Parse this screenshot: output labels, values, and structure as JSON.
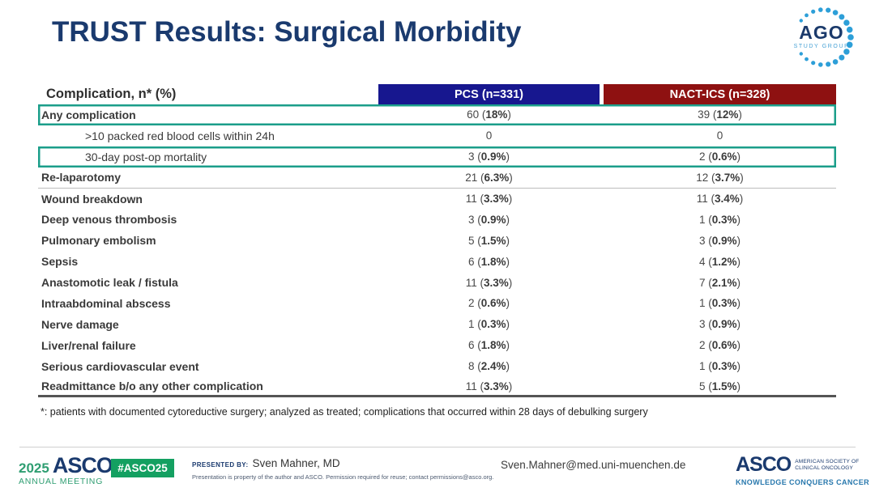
{
  "title": "TRUST Results: Surgical Morbidity",
  "ago_logo": {
    "text": "AGO",
    "subtext": "STUDY GROUP"
  },
  "table": {
    "header": {
      "label": "Complication, n* (%)",
      "pcs": "PCS (n=331)",
      "nact": "NACT-ICS (n=328)"
    },
    "rows": [
      {
        "label": "Any complication",
        "bold": true,
        "indent": false,
        "highlight": true,
        "pcs": {
          "n": "60",
          "pct": "18%"
        },
        "nact": {
          "n": "39",
          "pct": "12%"
        }
      },
      {
        "label": ">10 packed red blood cells within 24h",
        "bold": false,
        "indent": true,
        "pcs": {
          "n": "0"
        },
        "nact": {
          "n": "0"
        }
      },
      {
        "label": "30-day post-op mortality",
        "bold": false,
        "indent": true,
        "highlight": true,
        "pcs": {
          "n": "3",
          "pct": "0.9%"
        },
        "nact": {
          "n": "2",
          "pct": "0.6%"
        }
      },
      {
        "label": "Re-laparotomy",
        "bold": true,
        "divider": true,
        "pcs": {
          "n": "21",
          "pct": "6.3%"
        },
        "nact": {
          "n": "12",
          "pct": "3.7%"
        }
      },
      {
        "label": "Wound breakdown",
        "bold": true,
        "pcs": {
          "n": "11",
          "pct": "3.3%"
        },
        "nact": {
          "n": "11",
          "pct": "3.4%"
        }
      },
      {
        "label": "Deep venous thrombosis",
        "bold": true,
        "pcs": {
          "n": "3",
          "pct": "0.9%"
        },
        "nact": {
          "n": "1",
          "pct": "0.3%"
        }
      },
      {
        "label": "Pulmonary embolism",
        "bold": true,
        "pcs": {
          "n": "5",
          "pct": "1.5%"
        },
        "nact": {
          "n": "3",
          "pct": "0.9%"
        }
      },
      {
        "label": "Sepsis",
        "bold": true,
        "pcs": {
          "n": "6",
          "pct": "1.8%"
        },
        "nact": {
          "n": "4",
          "pct": "1.2%"
        }
      },
      {
        "label": "Anastomotic leak / fistula",
        "bold": true,
        "pcs": {
          "n": "11",
          "pct": "3.3%"
        },
        "nact": {
          "n": "7",
          "pct": "2.1%"
        }
      },
      {
        "label": "Intraabdominal abscess",
        "bold": true,
        "pcs": {
          "n": "2",
          "pct": "0.6%"
        },
        "nact": {
          "n": "1",
          "pct": "0.3%"
        }
      },
      {
        "label": "Nerve damage",
        "bold": true,
        "pcs": {
          "n": "1",
          "pct": "0.3%"
        },
        "nact": {
          "n": "3",
          "pct": "0.9%"
        }
      },
      {
        "label": "Liver/renal failure",
        "bold": true,
        "pcs": {
          "n": "6",
          "pct": "1.8%"
        },
        "nact": {
          "n": "2",
          "pct": "0.6%"
        }
      },
      {
        "label": "Serious cardiovascular event",
        "bold": true,
        "pcs": {
          "n": "8",
          "pct": "2.4%"
        },
        "nact": {
          "n": "1",
          "pct": "0.3%"
        }
      },
      {
        "label": "Readmittance b/o any other complication",
        "bold": true,
        "last": true,
        "pcs": {
          "n": "11",
          "pct": "3.3%"
        },
        "nact": {
          "n": "5",
          "pct": "1.5%"
        }
      }
    ]
  },
  "footnote": "*: patients with documented cytoreductive surgery; analyzed as treated; complications that occurred within 28 days of debulking surgery",
  "footer": {
    "year": "2025",
    "asco_wordmark": "ASCO",
    "annual_meeting": "ANNUAL MEETING",
    "hashtag": "#ASCO25",
    "presented_by_label": "PRESENTED BY:",
    "presenter": "Sven Mahner, MD",
    "disclaimer": "Presentation is property of the author and ASCO. Permission required for reuse; contact permissions@asco.org.",
    "email": "Sven.Mahner@med.uni-muenchen.de",
    "asco_society_line1": "AMERICAN SOCIETY OF",
    "asco_society_line2": "CLINICAL ONCOLOGY",
    "asco_tagline": "KNOWLEDGE CONQUERS CANCER"
  },
  "colors": {
    "title_navy": "#1a3a6e",
    "pcs_header_bg": "#17178f",
    "nact_header_bg": "#8e1111",
    "highlight_green": "#1b9e8a",
    "asco_green": "#2f9e72",
    "badge_green": "#14a061",
    "tagline_blue": "#2878ad",
    "ago_dot_blue": "#2d9fd8"
  }
}
